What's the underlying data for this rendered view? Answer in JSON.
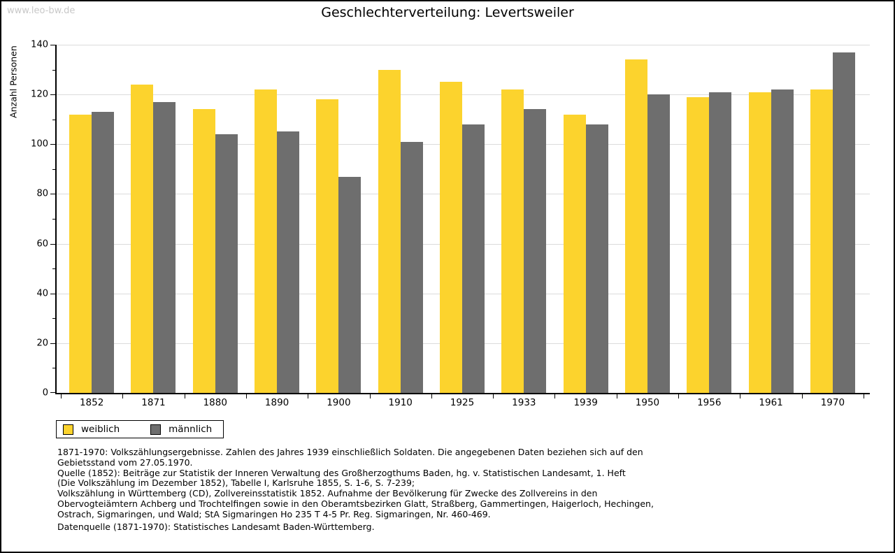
{
  "watermark": "www.leo-bw.de",
  "title": "Geschlechterverteilung: Levertsweiler",
  "ylabel": "Anzahl Personen",
  "chart_data": {
    "type": "bar",
    "title": "Geschlechterverteilung: Levertsweiler",
    "xlabel": "",
    "ylabel": "Anzahl Personen",
    "categories": [
      "1852",
      "1871",
      "1880",
      "1890",
      "1900",
      "1910",
      "1925",
      "1933",
      "1939",
      "1950",
      "1956",
      "1961",
      "1970"
    ],
    "series": [
      {
        "name": "weiblich",
        "color": "#FCD32D",
        "values": [
          112,
          124,
          114,
          122,
          118,
          130,
          125,
          122,
          112,
          134,
          119,
          121,
          122
        ]
      },
      {
        "name": "männlich",
        "color": "#6E6E6E",
        "values": [
          113,
          117,
          104,
          105,
          87,
          101,
          108,
          114,
          108,
          120,
          121,
          122,
          137
        ]
      }
    ],
    "ylim": [
      0,
      140
    ],
    "ytick_step": 20,
    "ytick_minor_step": 10,
    "grid": true,
    "legend_position": "bottom-left"
  },
  "colors": {
    "grid": "#DBDBDB",
    "axis": "#000000",
    "watermark": "#C8C8C8",
    "background": "#FFFFFF",
    "frame": "#000000"
  },
  "notes": {
    "source_block": "1871-1970: Volkszählungsergebnisse. Zahlen des Jahres 1939 einschließlich Soldaten. Die angegebenen Daten beziehen sich auf den\nGebietsstand vom 27.05.1970.\nQuelle (1852): Beiträge zur Statistik der Inneren Verwaltung des Großherzogthums Baden, hg. v. Statistischen Landesamt, 1. Heft\n(Die Volkszählung im Dezember 1852), Tabelle I, Karlsruhe 1855, S. 1-6, S. 7-239;\nVolkszählung in Württemberg (CD), Zollvereinsstatistik 1852. Aufnahme der Bevölkerung für Zwecke des Zollvereins in den\nObervogteiämtern Achberg und Trochtelfingen sowie in den Oberamtsbezirken Glatt, Straßberg, Gammertingen, Haigerloch, Hechingen,\nOstrach, Sigmaringen, und Wald; StA Sigmaringen Ho 235 T 4-5 Pr. Reg. Sigmaringen, Nr. 460-469.",
    "data_source": "Datenquelle (1871-1970): Statistisches Landesamt Baden-Württemberg."
  }
}
